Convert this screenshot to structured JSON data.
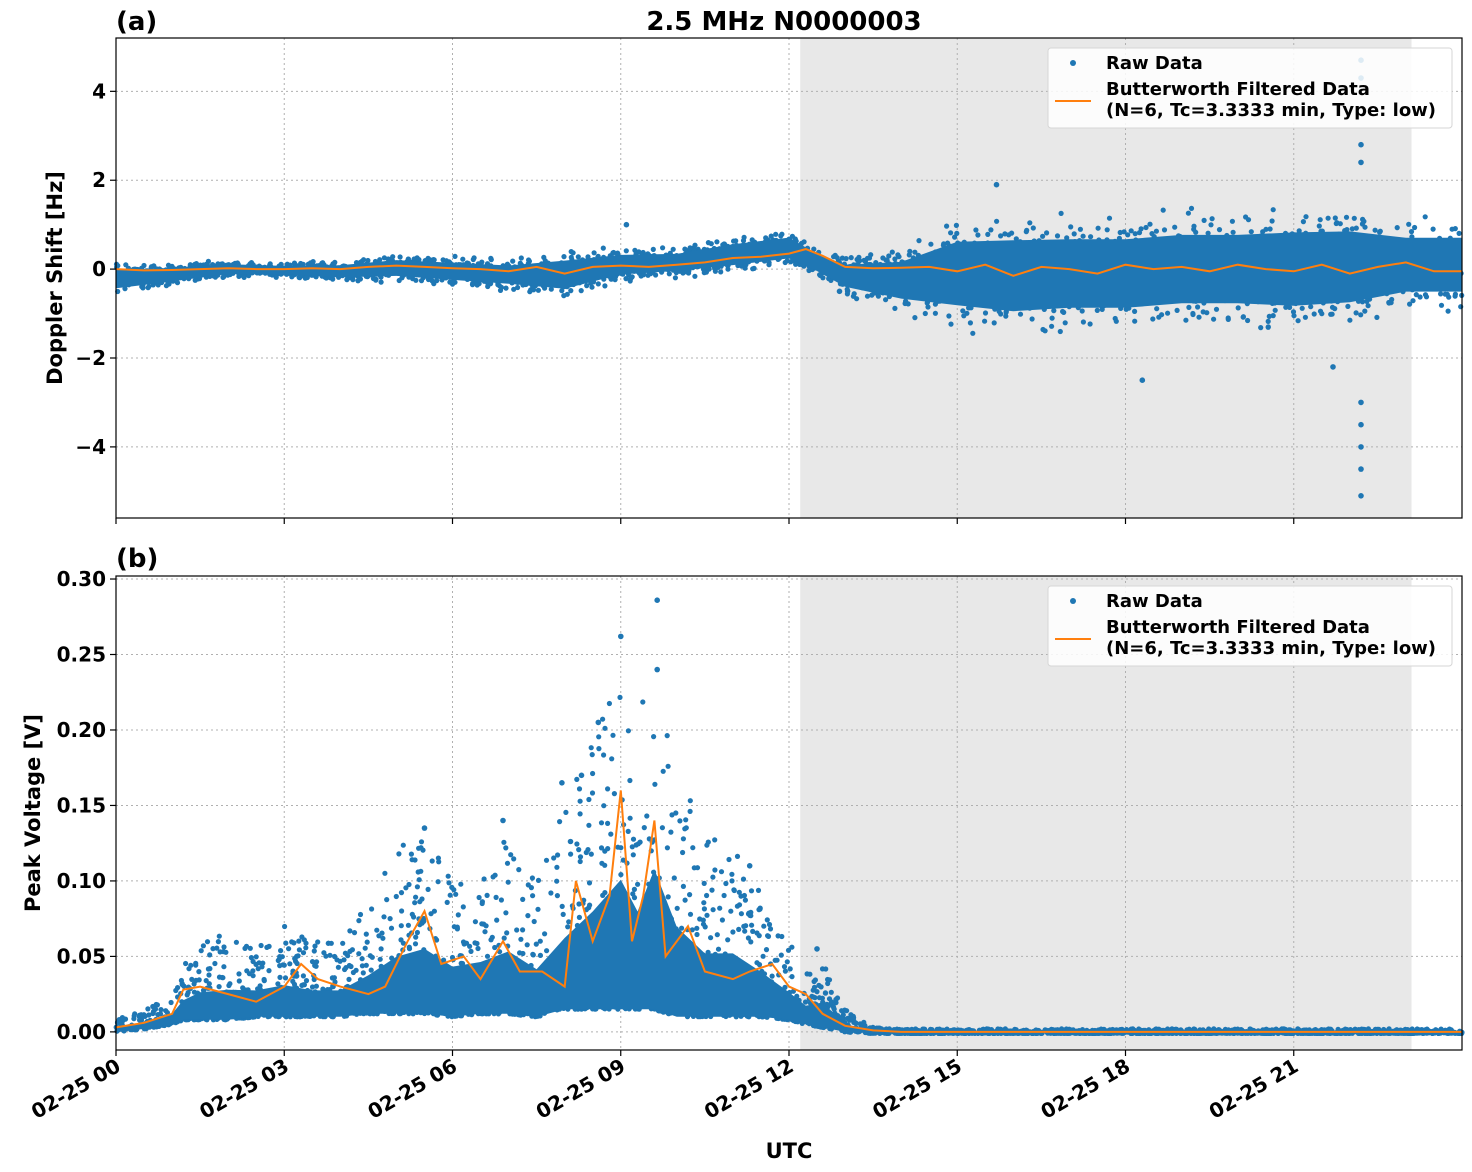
{
  "figure": {
    "title": "2.5 MHz N0000003",
    "xlabel": "UTC",
    "colors": {
      "raw": "#1f77b4",
      "filtered": "#ff7f0e",
      "shade": "#e8e8e8",
      "grid": "#b0b0b0"
    }
  },
  "chart_data": [
    {
      "type": "scatter",
      "panel_label": "(a)",
      "title": "2.5 MHz N0000003",
      "xlabel": "",
      "ylabel": "Doppler Shift [Hz]",
      "xlim_hours": [
        0,
        24
      ],
      "ylim": [
        -5.6,
        5.2
      ],
      "x_ticks": [
        0,
        3,
        6,
        9,
        12,
        15,
        18,
        21
      ],
      "y_ticks": [
        -4,
        -2,
        0,
        2,
        4
      ],
      "y_tick_labels": [
        "−4",
        "−2",
        "0",
        "2",
        "4"
      ],
      "grid": true,
      "shaded_region_hours": [
        12.2,
        23.1
      ],
      "legend": {
        "placement": "top-right",
        "raw_label": "Raw Data",
        "filtered_label_1": "Butterworth Filtered Data",
        "filtered_label_2": "(N=6, Tc=3.3333 min, Type: low)"
      },
      "series": [
        {
          "name": "Raw Data",
          "kind": "scatter",
          "envelope_hours": [
            0,
            1,
            2,
            3,
            4,
            5,
            6,
            7,
            8,
            9,
            10,
            11,
            12,
            12.5,
            13,
            14,
            15,
            16,
            17,
            18,
            19,
            20,
            21,
            22,
            23,
            24
          ],
          "upper_hz": [
            0.15,
            0.15,
            0.2,
            0.15,
            0.2,
            0.35,
            0.3,
            0.25,
            0.45,
            0.5,
            0.5,
            0.75,
            0.9,
            0.5,
            0.3,
            0.5,
            1.2,
            1.3,
            1.3,
            1.3,
            1.4,
            1.4,
            1.5,
            1.5,
            1.2,
            1.2
          ],
          "lower_hz": [
            -0.6,
            -0.4,
            -0.2,
            -0.2,
            -0.3,
            -0.3,
            -0.4,
            -0.5,
            -0.7,
            -0.3,
            -0.2,
            -0.1,
            0.05,
            -0.2,
            -0.6,
            -1.0,
            -1.4,
            -1.6,
            -1.5,
            -1.5,
            -1.4,
            -1.4,
            -1.5,
            -1.4,
            -1.0,
            -1.0
          ],
          "outliers": [
            [
              22.2,
              4.7
            ],
            [
              22.2,
              4.3
            ],
            [
              22.2,
              2.8
            ],
            [
              22.2,
              2.4
            ],
            [
              22.2,
              -3.0
            ],
            [
              22.2,
              -3.5
            ],
            [
              22.2,
              -4.0
            ],
            [
              22.2,
              -4.5
            ],
            [
              22.2,
              -5.1
            ],
            [
              21.7,
              -2.2
            ],
            [
              18.3,
              -2.5
            ],
            [
              15.7,
              1.9
            ],
            [
              9.1,
              1.0
            ],
            [
              12.9,
              -0.5
            ]
          ]
        },
        {
          "name": "Butterworth Filtered Data",
          "kind": "line",
          "x_hours": [
            0,
            0.5,
            1,
            1.5,
            2,
            2.5,
            3,
            3.5,
            4,
            4.5,
            5,
            5.5,
            6,
            6.5,
            7,
            7.5,
            8,
            8.5,
            9,
            9.5,
            10,
            10.5,
            11,
            11.5,
            12,
            12.3,
            12.6,
            13,
            13.5,
            14,
            14.5,
            15,
            15.5,
            16,
            16.5,
            17,
            17.5,
            18,
            18.5,
            19,
            19.5,
            20,
            20.5,
            21,
            21.5,
            22,
            22.5,
            23,
            23.5,
            24
          ],
          "y_hz": [
            0.0,
            -0.03,
            -0.02,
            0.0,
            0.02,
            0.0,
            0.0,
            0.02,
            0.0,
            0.05,
            0.08,
            0.05,
            0.02,
            0.0,
            -0.05,
            0.05,
            -0.1,
            0.05,
            0.08,
            0.05,
            0.1,
            0.15,
            0.25,
            0.28,
            0.35,
            0.45,
            0.3,
            0.05,
            0.02,
            0.03,
            0.05,
            -0.05,
            0.1,
            -0.15,
            0.05,
            0.0,
            -0.1,
            0.1,
            0.0,
            0.05,
            -0.05,
            0.1,
            0.0,
            -0.05,
            0.1,
            -0.1,
            0.05,
            0.15,
            -0.05,
            -0.05
          ]
        }
      ]
    },
    {
      "type": "scatter",
      "panel_label": "(b)",
      "title": "",
      "xlabel": "UTC",
      "ylabel": "Peak Voltage [V]",
      "xlim_hours": [
        0,
        24
      ],
      "ylim": [
        -0.012,
        0.302
      ],
      "x_ticks": [
        0,
        3,
        6,
        9,
        12,
        15,
        18,
        21
      ],
      "x_tick_labels": [
        "02-25 00",
        "02-25 03",
        "02-25 06",
        "02-25 09",
        "02-25 12",
        "02-25 15",
        "02-25 18",
        "02-25 21"
      ],
      "y_ticks": [
        0.0,
        0.05,
        0.1,
        0.15,
        0.2,
        0.25,
        0.3
      ],
      "y_tick_labels": [
        "0.00",
        "0.05",
        "0.10",
        "0.15",
        "0.20",
        "0.25",
        "0.30"
      ],
      "grid": true,
      "shaded_region_hours": [
        12.2,
        23.1
      ],
      "legend": {
        "placement": "top-right",
        "raw_label": "Raw Data",
        "filtered_label_1": "Butterworth Filtered Data",
        "filtered_label_2": "(N=6, Tc=3.3333 min, Type: low)"
      },
      "series": [
        {
          "name": "Raw Data",
          "kind": "scatter",
          "envelope_hours": [
            0,
            0.5,
            1,
            1.2,
            1.5,
            2,
            2.5,
            3,
            3.5,
            4,
            4.5,
            5,
            5.5,
            6,
            6.5,
            7,
            7.5,
            8,
            8.5,
            9,
            9.3,
            9.6,
            10,
            10.5,
            11,
            11.5,
            12,
            12.3,
            12.6,
            13,
            13.5,
            14,
            15,
            16,
            17,
            18,
            19,
            20,
            21,
            22,
            23,
            24
          ],
          "upper_v": [
            0.008,
            0.015,
            0.025,
            0.045,
            0.06,
            0.065,
            0.06,
            0.07,
            0.06,
            0.06,
            0.085,
            0.12,
            0.135,
            0.105,
            0.11,
            0.13,
            0.1,
            0.15,
            0.2,
            0.26,
            0.2,
            0.28,
            0.18,
            0.13,
            0.13,
            0.095,
            0.06,
            0.04,
            0.05,
            0.015,
            0.003,
            0.002,
            0.002,
            0.002,
            0.002,
            0.002,
            0.002,
            0.002,
            0.002,
            0.002,
            0.002,
            0.002
          ],
          "lower_v": [
            0.0,
            0.002,
            0.005,
            0.008,
            0.008,
            0.008,
            0.01,
            0.01,
            0.01,
            0.01,
            0.012,
            0.012,
            0.012,
            0.01,
            0.012,
            0.012,
            0.01,
            0.015,
            0.015,
            0.015,
            0.015,
            0.015,
            0.01,
            0.01,
            0.01,
            0.01,
            0.008,
            0.005,
            0.003,
            0.0,
            -0.001,
            -0.001,
            -0.001,
            -0.001,
            -0.001,
            -0.001,
            -0.001,
            -0.001,
            -0.001,
            -0.001,
            -0.001,
            -0.001
          ],
          "outliers": [
            [
              9.0,
              0.262
            ],
            [
              9.65,
              0.286
            ],
            [
              9.65,
              0.24
            ],
            [
              8.6,
              0.205
            ],
            [
              7.95,
              0.165
            ],
            [
              8.3,
              0.17
            ],
            [
              5.5,
              0.135
            ],
            [
              6.9,
              0.14
            ],
            [
              11.3,
              0.11
            ],
            [
              12.5,
              0.055
            ]
          ]
        },
        {
          "name": "Butterworth Filtered Data",
          "kind": "line",
          "x_hours": [
            0,
            0.5,
            1,
            1.2,
            1.5,
            2,
            2.5,
            3,
            3.3,
            3.6,
            4,
            4.5,
            4.8,
            5.2,
            5.5,
            5.8,
            6.2,
            6.5,
            6.9,
            7.2,
            7.6,
            8.0,
            8.2,
            8.5,
            8.8,
            9.0,
            9.2,
            9.4,
            9.6,
            9.8,
            10.2,
            10.5,
            11.0,
            11.3,
            11.7,
            12.0,
            12.3,
            12.6,
            13.0,
            13.5,
            14,
            15,
            16,
            17,
            18,
            19,
            20,
            21,
            22,
            23,
            24
          ],
          "y_v": [
            0.003,
            0.006,
            0.012,
            0.028,
            0.03,
            0.025,
            0.02,
            0.03,
            0.045,
            0.035,
            0.03,
            0.025,
            0.03,
            0.06,
            0.08,
            0.045,
            0.05,
            0.035,
            0.06,
            0.04,
            0.04,
            0.03,
            0.1,
            0.06,
            0.09,
            0.16,
            0.06,
            0.09,
            0.14,
            0.05,
            0.07,
            0.04,
            0.035,
            0.04,
            0.045,
            0.03,
            0.025,
            0.012,
            0.004,
            0.001,
            0.0,
            0.0,
            0.0,
            0.0,
            0.0,
            0.0,
            0.0,
            0.0,
            0.0,
            0.0,
            0.0
          ]
        }
      ]
    }
  ]
}
